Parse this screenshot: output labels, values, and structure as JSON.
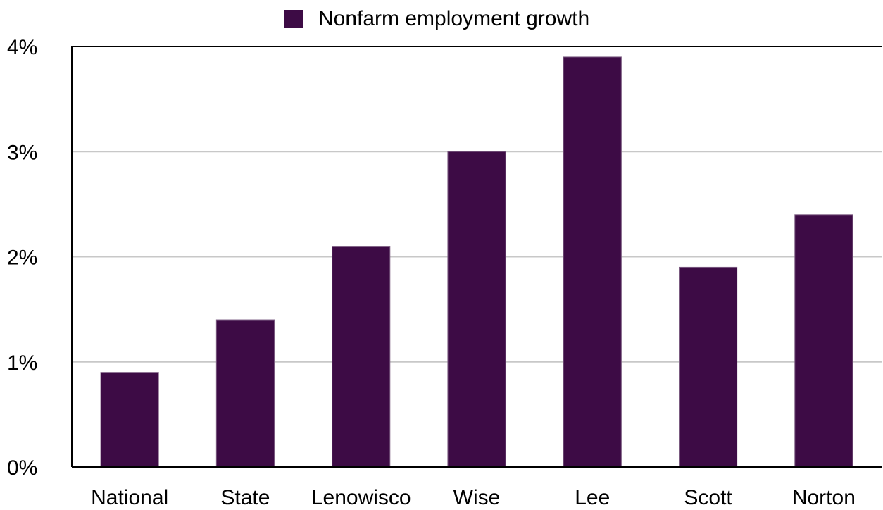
{
  "chart_data": {
    "type": "bar",
    "legend_position": "top-center",
    "grid": true,
    "categories": [
      "National",
      "State",
      "Lenowisco",
      "Wise",
      "Lee",
      "Scott",
      "Norton"
    ],
    "series": [
      {
        "name": "Nonfarm employment growth",
        "values": [
          0.9,
          1.4,
          2.1,
          3.0,
          3.9,
          1.9,
          2.4
        ],
        "color": "#3d0b45"
      }
    ],
    "y_ticks": [
      0,
      1,
      2,
      3,
      4
    ],
    "y_tick_labels": [
      "0%",
      "1%",
      "2%",
      "3%",
      "4%"
    ],
    "ylim": [
      0,
      4
    ],
    "y_unit": "%",
    "title": "",
    "xlabel": "",
    "ylabel": "",
    "colors": {
      "bar": "#3d0b45",
      "axis": "#000000",
      "grid": "#c8c8c8"
    }
  }
}
